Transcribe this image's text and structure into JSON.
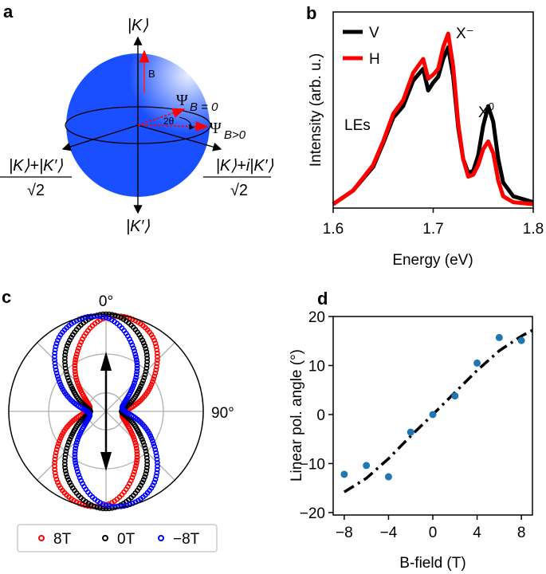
{
  "panels": {
    "a": {
      "label": "a",
      "top_state": "|K⟩",
      "bottom_state": "|K′⟩",
      "left_state_num": "|K⟩+|K′⟩",
      "left_state_den": "√2",
      "right_state_num": "|K⟩+i|K′⟩",
      "right_state_den": "√2",
      "b_label": "B",
      "psi0": "Ψ",
      "psi0_sub": "B = 0",
      "psi1": "Ψ",
      "psi1_sub": "B>0",
      "angle": "2θ",
      "colors": {
        "sphere": "#1a4fff",
        "vectors": "#ff0000"
      }
    },
    "b": {
      "label": "b"
    },
    "c": {
      "label": "c"
    },
    "d": {
      "label": "d"
    }
  },
  "chart_data": [
    {
      "panel": "b",
      "type": "line",
      "xlabel": "Energy (eV)",
      "ylabel": "Intensity (arb. u.)",
      "xlim": [
        1.6,
        1.8
      ],
      "ylim": [
        0,
        1
      ],
      "xticks": [
        "1.6",
        "1.7",
        "1.8"
      ],
      "annotations": {
        "xminus": "X⁻",
        "x0_base": "X",
        "x0_sup": "0",
        "les": "LEs"
      },
      "legend_position": "top-left",
      "series": [
        {
          "name": "V",
          "color": "#000000",
          "x": [
            1.6,
            1.62,
            1.64,
            1.65,
            1.66,
            1.67,
            1.68,
            1.69,
            1.695,
            1.7,
            1.705,
            1.71,
            1.715,
            1.72,
            1.725,
            1.73,
            1.735,
            1.74,
            1.745,
            1.75,
            1.755,
            1.76,
            1.765,
            1.77,
            1.78,
            1.8
          ],
          "y": [
            0.02,
            0.09,
            0.21,
            0.33,
            0.46,
            0.52,
            0.65,
            0.71,
            0.6,
            0.64,
            0.67,
            0.76,
            0.82,
            0.67,
            0.41,
            0.25,
            0.18,
            0.19,
            0.27,
            0.42,
            0.52,
            0.44,
            0.25,
            0.13,
            0.06,
            0.03
          ]
        },
        {
          "name": "H",
          "color": "#ff0000",
          "x": [
            1.6,
            1.62,
            1.64,
            1.65,
            1.66,
            1.67,
            1.68,
            1.69,
            1.695,
            1.7,
            1.705,
            1.71,
            1.715,
            1.72,
            1.725,
            1.73,
            1.735,
            1.74,
            1.745,
            1.75,
            1.755,
            1.76,
            1.765,
            1.77,
            1.78,
            1.8
          ],
          "y": [
            0.02,
            0.09,
            0.22,
            0.34,
            0.48,
            0.55,
            0.69,
            0.76,
            0.66,
            0.68,
            0.71,
            0.82,
            0.89,
            0.72,
            0.43,
            0.25,
            0.16,
            0.17,
            0.22,
            0.3,
            0.34,
            0.28,
            0.14,
            0.06,
            0.03,
            0.02
          ]
        }
      ]
    },
    {
      "panel": "c",
      "type": "scatter",
      "polar": true,
      "angle_labels": {
        "top": "0°",
        "right": "90°"
      },
      "theta_deg": [
        0,
        30,
        60,
        90,
        120,
        150,
        180,
        210,
        240,
        270,
        300,
        330
      ],
      "rlim": [
        0,
        1
      ],
      "legend_position": "bottom",
      "series": [
        {
          "name": "8T",
          "color": "#ff0000",
          "r": [
            0.964,
            0.92,
            0.536,
            0.196,
            0.24,
            0.624,
            0.964,
            0.92,
            0.536,
            0.196,
            0.24,
            0.624
          ]
        },
        {
          "name": "0T",
          "color": "#000000",
          "r": [
            1.0,
            0.79,
            0.37,
            0.16,
            0.37,
            0.79,
            1.0,
            0.79,
            0.37,
            0.16,
            0.37,
            0.79
          ]
        },
        {
          "name": "−8T",
          "color": "#0000ff",
          "r": [
            0.964,
            0.624,
            0.24,
            0.196,
            0.536,
            0.92,
            0.964,
            0.624,
            0.24,
            0.196,
            0.536,
            0.92
          ]
        }
      ]
    },
    {
      "panel": "d",
      "type": "scatter",
      "xlabel": "B-field (T)",
      "ylabel": "Linear pol. angle (°)",
      "xlim": [
        -9,
        9
      ],
      "ylim": [
        -20.5,
        20
      ],
      "xticks": [
        "−8",
        "−4",
        "0",
        "4",
        "8"
      ],
      "xtick_values": [
        -8,
        -4,
        0,
        4,
        8
      ],
      "yticks": [
        "20",
        "10",
        "0",
        "−10",
        "−20"
      ],
      "ytick_values": [
        20,
        10,
        0,
        -10,
        -20
      ],
      "points": {
        "color": "#1f77b4",
        "x": [
          -8,
          -6,
          -4,
          -2,
          0,
          2,
          4,
          6,
          8
        ],
        "y": [
          -12.2,
          -10.4,
          -12.7,
          -3.6,
          0,
          3.8,
          10.5,
          15.7,
          15.1
        ]
      },
      "fit": {
        "color": "#000000",
        "style": "dash-dot",
        "x": [
          -8,
          -6,
          -4,
          -2,
          0,
          2,
          4,
          6,
          8,
          9
        ],
        "y": [
          -15.8,
          -13,
          -9,
          -4.4,
          0,
          4.5,
          9,
          13,
          16,
          17.2
        ]
      }
    }
  ]
}
